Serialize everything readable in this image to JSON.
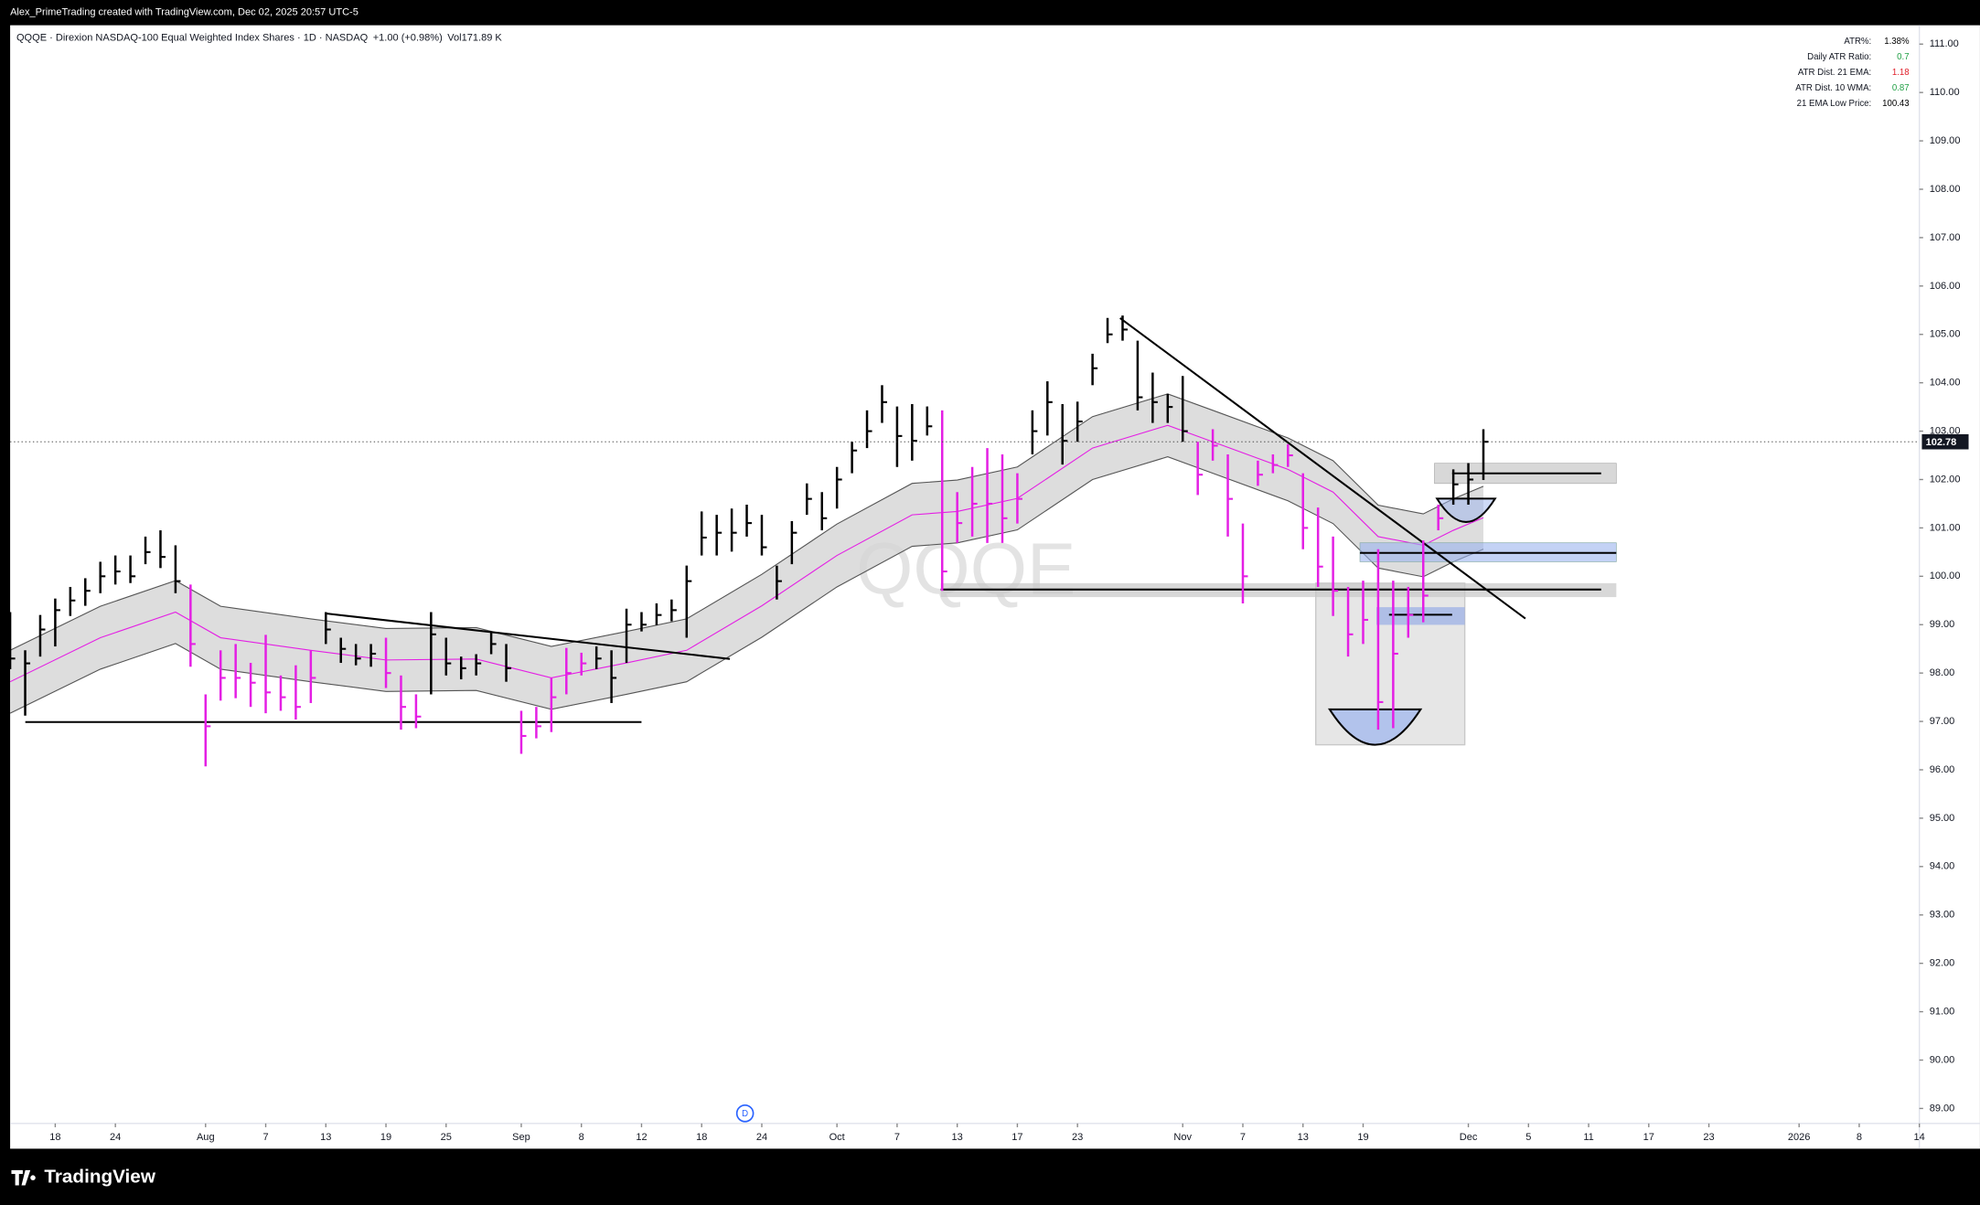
{
  "credit": "Alex_PrimeTrading created with TradingView.com, Dec 02, 2025 20:57 UTC-5",
  "header": {
    "symbol_line": "QQQE · Direxion NASDAQ-100 Equal Weighted Index Shares · 1D · NASDAQ",
    "change": "+1.00 (+0.98%)",
    "volume": "Vol171.89 K"
  },
  "watermark": "QQQE",
  "dividend_marker": "D",
  "brand": "TradingView",
  "indicator_table": [
    {
      "label": "ATR%:",
      "value": "1.38%",
      "color": "#000000"
    },
    {
      "label": "Daily ATR Ratio:",
      "value": "0.7",
      "color": "#22a046"
    },
    {
      "label": "ATR Dist. 21 EMA:",
      "value": "1.18",
      "color": "#e0202a"
    },
    {
      "label": "ATR Dist. 10 WMA:",
      "value": "0.87",
      "color": "#22a046"
    },
    {
      "label": "21 EMA Low Price:",
      "value": "100.43",
      "color": "#000000"
    }
  ],
  "chart_data": {
    "type": "ohlc",
    "xlim": [
      0,
      127
    ],
    "ylim": [
      88.69,
      111.39
    ],
    "xticks": [
      {
        "value": 3,
        "label": "18"
      },
      {
        "value": 7,
        "label": "24"
      },
      {
        "value": 13,
        "label": "Aug"
      },
      {
        "value": 17,
        "label": "7"
      },
      {
        "value": 21,
        "label": "13"
      },
      {
        "value": 25,
        "label": "19"
      },
      {
        "value": 29,
        "label": "25"
      },
      {
        "value": 34,
        "label": "Sep"
      },
      {
        "value": 38,
        "label": "8"
      },
      {
        "value": 42,
        "label": "12"
      },
      {
        "value": 46,
        "label": "18"
      },
      {
        "value": 50,
        "label": "24"
      },
      {
        "value": 55,
        "label": "Oct"
      },
      {
        "value": 59,
        "label": "7"
      },
      {
        "value": 63,
        "label": "13"
      },
      {
        "value": 67,
        "label": "17"
      },
      {
        "value": 71,
        "label": "23"
      },
      {
        "value": 78,
        "label": "Nov"
      },
      {
        "value": 82,
        "label": "7"
      },
      {
        "value": 86,
        "label": "13"
      },
      {
        "value": 90,
        "label": "19"
      },
      {
        "value": 97,
        "label": "Dec"
      },
      {
        "value": 101,
        "label": "5"
      },
      {
        "value": 105,
        "label": "11"
      },
      {
        "value": 109,
        "label": "17"
      },
      {
        "value": 113,
        "label": "23"
      },
      {
        "value": 119,
        "label": "2026"
      },
      {
        "value": 123,
        "label": "8"
      },
      {
        "value": 127,
        "label": "14"
      }
    ],
    "yticks": [
      {
        "value": 111,
        "label": "111.00"
      },
      {
        "value": 110,
        "label": "110.00"
      },
      {
        "value": 109,
        "label": "109.00"
      },
      {
        "value": 108,
        "label": "108.00"
      },
      {
        "value": 107,
        "label": "107.00"
      },
      {
        "value": 106,
        "label": "106.00"
      },
      {
        "value": 105,
        "label": "105.00"
      },
      {
        "value": 104,
        "label": "104.00"
      },
      {
        "value": 103,
        "label": "103.00"
      },
      {
        "value": 102,
        "label": "102.00"
      },
      {
        "value": 101,
        "label": "101.00"
      },
      {
        "value": 100,
        "label": "100.00"
      },
      {
        "value": 99,
        "label": "99.00"
      },
      {
        "value": 98,
        "label": "98.00"
      },
      {
        "value": 97,
        "label": "97.00"
      },
      {
        "value": 96,
        "label": "96.00"
      },
      {
        "value": 95,
        "label": "95.00"
      },
      {
        "value": 94,
        "label": "94.00"
      },
      {
        "value": 93,
        "label": "93.00"
      },
      {
        "value": 92,
        "label": "92.00"
      },
      {
        "value": 91,
        "label": "91.00"
      },
      {
        "value": 90,
        "label": "90.00"
      },
      {
        "value": 89,
        "label": "89.00"
      }
    ],
    "last_price": 102.78,
    "color": "#000000",
    "highlight_color": "#e41fe4",
    "highlight_bars": [
      [
        12,
        20
      ],
      [
        25,
        27
      ],
      [
        34,
        38
      ],
      [
        62,
        67
      ],
      [
        79,
        95
      ]
    ],
    "high": [
      99.26,
      98.47,
      99.2,
      99.54,
      99.78,
      99.96,
      100.3,
      100.43,
      100.43,
      100.82,
      100.95,
      100.64,
      99.83,
      97.56,
      98.47,
      98.6,
      98.21,
      98.79,
      97.95,
      98.16,
      98.47,
      99.26,
      98.73,
      98.6,
      98.6,
      98.73,
      97.95,
      97.56,
      99.26,
      98.73,
      98.34,
      98.39,
      98.86,
      98.6,
      97.22,
      97.3,
      97.9,
      98.52,
      98.42,
      98.55,
      98.47,
      99.33,
      99.26,
      99.44,
      99.52,
      100.22,
      101.34,
      101.27,
      101.4,
      101.48,
      101.27,
      100.22,
      101.14,
      101.92,
      101.74,
      102.26,
      102.78,
      103.43,
      103.95,
      103.51,
      103.56,
      103.51,
      103.43,
      101.74,
      102.26,
      102.65,
      102.52,
      102.13,
      103.43,
      104.03,
      103.56,
      103.61,
      104.6,
      105.34,
      105.39,
      104.87,
      104.21,
      103.77,
      104.14,
      102.78,
      103.04,
      102.52,
      101.09,
      102.39,
      102.52,
      102.73,
      102.13,
      101.42,
      100.82,
      99.78,
      99.91,
      100.56,
      99.91,
      99.78,
      100.74,
      101.48,
      102.21,
      102.34,
      103.04
    ],
    "low": [
      98.08,
      97.12,
      98.34,
      98.55,
      99.18,
      99.39,
      99.65,
      99.83,
      99.86,
      100.25,
      100.17,
      99.65,
      98.13,
      96.07,
      97.43,
      97.48,
      97.3,
      97.17,
      97.22,
      97.04,
      97.38,
      98.6,
      98.21,
      98.16,
      98.13,
      97.69,
      96.83,
      96.86,
      97.56,
      97.95,
      97.87,
      97.95,
      98.39,
      97.82,
      96.33,
      96.65,
      96.78,
      97.56,
      97.95,
      98.08,
      97.38,
      98.21,
      98.86,
      98.99,
      99.07,
      98.73,
      100.43,
      100.43,
      100.51,
      100.82,
      100.43,
      99.52,
      100.25,
      101.27,
      100.95,
      101.4,
      102.13,
      102.65,
      103.17,
      102.26,
      102.39,
      102.91,
      99.7,
      100.69,
      100.82,
      100.69,
      100.69,
      101.09,
      102.52,
      102.91,
      102.31,
      102.78,
      103.95,
      104.82,
      104.87,
      103.43,
      103.17,
      103.17,
      102.78,
      101.68,
      102.39,
      100.82,
      99.44,
      101.87,
      102.13,
      102.26,
      100.56,
      99.78,
      99.18,
      98.34,
      98.6,
      96.83,
      96.86,
      98.73,
      99.05,
      100.95,
      101.48,
      101.48,
      101.99
    ],
    "close": [
      98.3,
      98.2,
      98.9,
      99.3,
      99.5,
      99.7,
      100.0,
      100.1,
      100.0,
      100.5,
      100.4,
      99.9,
      98.6,
      96.9,
      97.9,
      97.9,
      97.8,
      97.6,
      97.5,
      97.3,
      97.9,
      98.9,
      98.5,
      98.3,
      98.4,
      98.0,
      97.3,
      97.1,
      98.8,
      98.2,
      98.1,
      98.2,
      98.6,
      98.1,
      96.7,
      96.9,
      97.5,
      98.0,
      98.2,
      98.3,
      97.9,
      99.0,
      99.0,
      99.2,
      99.3,
      99.9,
      100.8,
      100.9,
      100.9,
      101.1,
      100.6,
      99.9,
      100.9,
      101.6,
      101.2,
      102.0,
      102.6,
      103.0,
      103.6,
      102.9,
      102.8,
      103.1,
      100.1,
      101.1,
      101.5,
      101.5,
      101.2,
      101.6,
      103.0,
      103.6,
      102.8,
      103.2,
      104.3,
      105.0,
      105.1,
      103.7,
      103.6,
      103.5,
      103.0,
      102.1,
      102.7,
      101.6,
      100.0,
      102.1,
      102.3,
      102.5,
      101.0,
      100.2,
      99.7,
      98.8,
      99.1,
      97.4,
      98.4,
      99.2,
      99.6,
      101.2,
      101.9,
      102.0,
      102.78
    ],
    "ema": {
      "x": [
        0,
        6,
        11,
        14,
        20,
        25,
        31,
        36,
        41,
        45,
        50,
        55,
        60,
        63,
        67,
        72,
        77,
        80,
        85,
        88,
        91,
        94,
        96,
        98
      ],
      "series": [
        {
          "color": "#555555",
          "values": [
            98.47,
            99.38,
            99.91,
            99.38,
            99.12,
            98.92,
            98.94,
            98.55,
            98.86,
            99.12,
            100.04,
            101.08,
            101.92,
            101.99,
            102.26,
            103.3,
            103.77,
            103.43,
            102.86,
            102.39,
            101.47,
            101.29,
            101.6,
            101.86
          ]
        },
        {
          "color": "#e41fe4",
          "values": [
            97.82,
            98.73,
            99.26,
            98.73,
            98.47,
            98.27,
            98.29,
            97.9,
            98.21,
            98.47,
            99.39,
            100.43,
            101.27,
            101.34,
            101.61,
            102.65,
            103.12,
            102.78,
            102.21,
            101.74,
            100.82,
            100.64,
            100.95,
            101.21
          ]
        },
        {
          "color": "#555555",
          "values": [
            97.17,
            98.08,
            98.61,
            98.08,
            97.82,
            97.62,
            97.64,
            97.25,
            97.56,
            97.82,
            98.74,
            99.78,
            100.62,
            100.69,
            100.96,
            102.0,
            102.47,
            102.13,
            101.56,
            101.09,
            100.17,
            99.99,
            100.3,
            100.56
          ]
        }
      ]
    }
  }
}
